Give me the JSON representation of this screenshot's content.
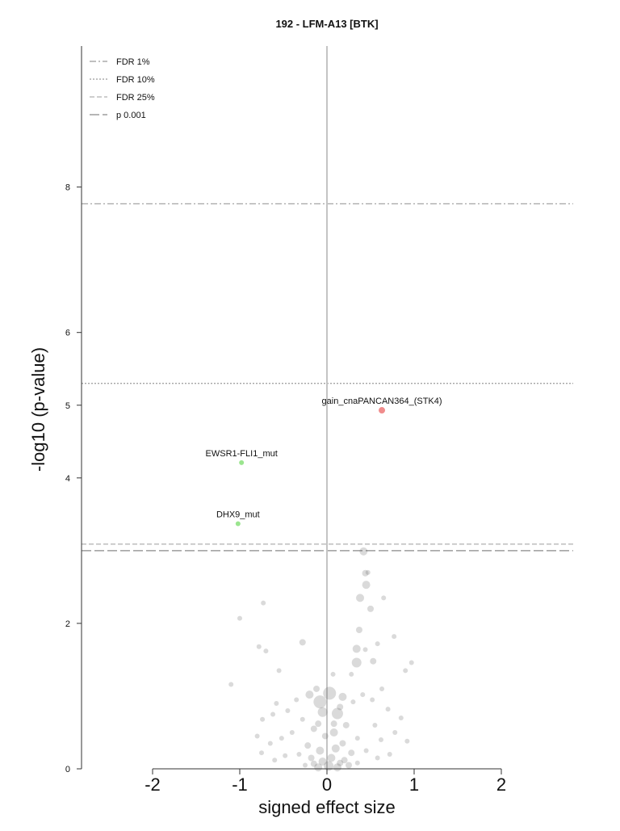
{
  "chart_data": {
    "type": "scatter",
    "title": "192 - LFM-A13 [BTK]",
    "xlabel": "signed effect size",
    "ylabel": "-log10 (p-value)",
    "xlim": [
      -2.75,
      2.8
    ],
    "ylim": [
      0,
      10
    ],
    "x_ticks": [
      -2,
      -1,
      0,
      1,
      2
    ],
    "x_tick_labels": [
      "-2",
      "-1",
      "0",
      "1",
      "2"
    ],
    "y_ticks": [
      0,
      2,
      4,
      5,
      6,
      8
    ],
    "y_tick_labels": [
      "0",
      "2",
      "4",
      "5",
      "6",
      "8"
    ],
    "grid": false,
    "legend_position": "top-left",
    "thresholds": [
      {
        "name": "FDR 1%",
        "y": 7.77,
        "style": "dashdot",
        "color": "#9a9a9a"
      },
      {
        "name": "FDR 10%",
        "y": 5.3,
        "style": "dotted",
        "color": "#9a9a9a"
      },
      {
        "name": "FDR 25%",
        "y": 3.09,
        "style": "dashed",
        "color": "#b0b0b0"
      },
      {
        "name": "p 0.001",
        "y": 3.0,
        "style": "longdash",
        "color": "#8a8a8a"
      }
    ],
    "highlighted_points": [
      {
        "label": "gain_cnaPANCAN364_(STK4)",
        "x": 0.63,
        "y": 4.93,
        "color": "#f08c8c",
        "r": 4
      },
      {
        "label": "EWSR1-FLI1_mut",
        "x": -0.98,
        "y": 4.21,
        "color": "#9be58f",
        "r": 3
      },
      {
        "label": "DHX9_mut",
        "x": -1.02,
        "y": 3.37,
        "color": "#9be58f",
        "r": 3
      }
    ],
    "background_points": [
      {
        "x": 0.42,
        "y": 2.99,
        "r": 5
      },
      {
        "x": 0.44,
        "y": 2.69,
        "r": 4
      },
      {
        "x": 0.47,
        "y": 2.7,
        "r": 3
      },
      {
        "x": 0.45,
        "y": 2.53,
        "r": 5
      },
      {
        "x": 0.38,
        "y": 2.35,
        "r": 5
      },
      {
        "x": 0.65,
        "y": 2.35,
        "r": 3
      },
      {
        "x": 0.5,
        "y": 2.2,
        "r": 4
      },
      {
        "x": -0.73,
        "y": 2.28,
        "r": 3
      },
      {
        "x": -1.0,
        "y": 2.07,
        "r": 3
      },
      {
        "x": 0.37,
        "y": 1.91,
        "r": 4
      },
      {
        "x": 0.77,
        "y": 1.82,
        "r": 3
      },
      {
        "x": -0.28,
        "y": 1.74,
        "r": 4
      },
      {
        "x": -0.78,
        "y": 1.68,
        "r": 3
      },
      {
        "x": -0.7,
        "y": 1.62,
        "r": 3
      },
      {
        "x": 0.34,
        "y": 1.65,
        "r": 5
      },
      {
        "x": 0.44,
        "y": 1.64,
        "r": 3
      },
      {
        "x": 0.58,
        "y": 1.72,
        "r": 3
      },
      {
        "x": 0.34,
        "y": 1.46,
        "r": 6
      },
      {
        "x": 0.53,
        "y": 1.48,
        "r": 4
      },
      {
        "x": 0.97,
        "y": 1.46,
        "r": 3
      },
      {
        "x": 0.9,
        "y": 1.35,
        "r": 3
      },
      {
        "x": -0.55,
        "y": 1.35,
        "r": 3
      },
      {
        "x": 0.28,
        "y": 1.3,
        "r": 3
      },
      {
        "x": 0.07,
        "y": 1.3,
        "r": 3
      },
      {
        "x": -1.1,
        "y": 1.16,
        "r": 3
      },
      {
        "x": 0.03,
        "y": 1.04,
        "r": 8
      },
      {
        "x": -0.08,
        "y": 0.92,
        "r": 8
      },
      {
        "x": -0.2,
        "y": 1.02,
        "r": 5
      },
      {
        "x": 0.18,
        "y": 0.99,
        "r": 5
      },
      {
        "x": 0.12,
        "y": 0.76,
        "r": 7
      },
      {
        "x": -0.05,
        "y": 0.78,
        "r": 6
      },
      {
        "x": 0.3,
        "y": 0.92,
        "r": 3
      },
      {
        "x": 0.41,
        "y": 1.02,
        "r": 3
      },
      {
        "x": 0.52,
        "y": 0.95,
        "r": 3
      },
      {
        "x": 0.63,
        "y": 1.1,
        "r": 3
      },
      {
        "x": -0.35,
        "y": 0.95,
        "r": 3
      },
      {
        "x": -0.58,
        "y": 0.9,
        "r": 3
      },
      {
        "x": -0.62,
        "y": 0.75,
        "r": 3
      },
      {
        "x": -0.74,
        "y": 0.68,
        "r": 3
      },
      {
        "x": -0.45,
        "y": 0.8,
        "r": 3
      },
      {
        "x": -0.28,
        "y": 0.68,
        "r": 3
      },
      {
        "x": 0.22,
        "y": 0.6,
        "r": 4
      },
      {
        "x": 0.7,
        "y": 0.82,
        "r": 3
      },
      {
        "x": 0.85,
        "y": 0.7,
        "r": 3
      },
      {
        "x": 0.55,
        "y": 0.6,
        "r": 3
      },
      {
        "x": -0.15,
        "y": 0.55,
        "r": 4
      },
      {
        "x": 0.08,
        "y": 0.5,
        "r": 5
      },
      {
        "x": -0.02,
        "y": 0.45,
        "r": 4
      },
      {
        "x": 0.35,
        "y": 0.42,
        "r": 3
      },
      {
        "x": -0.4,
        "y": 0.5,
        "r": 3
      },
      {
        "x": -0.52,
        "y": 0.42,
        "r": 3
      },
      {
        "x": -0.65,
        "y": 0.35,
        "r": 3
      },
      {
        "x": -0.8,
        "y": 0.45,
        "r": 3
      },
      {
        "x": 0.62,
        "y": 0.4,
        "r": 3
      },
      {
        "x": 0.78,
        "y": 0.5,
        "r": 3
      },
      {
        "x": 0.92,
        "y": 0.38,
        "r": 3
      },
      {
        "x": 0.18,
        "y": 0.35,
        "r": 4
      },
      {
        "x": -0.22,
        "y": 0.32,
        "r": 4
      },
      {
        "x": 0.1,
        "y": 0.28,
        "r": 5
      },
      {
        "x": -0.08,
        "y": 0.25,
        "r": 5
      },
      {
        "x": 0.28,
        "y": 0.22,
        "r": 4
      },
      {
        "x": -0.32,
        "y": 0.2,
        "r": 3
      },
      {
        "x": 0.45,
        "y": 0.25,
        "r": 3
      },
      {
        "x": -0.48,
        "y": 0.18,
        "r": 3
      },
      {
        "x": -0.6,
        "y": 0.12,
        "r": 3
      },
      {
        "x": 0.58,
        "y": 0.15,
        "r": 3
      },
      {
        "x": 0.72,
        "y": 0.2,
        "r": 3
      },
      {
        "x": -0.75,
        "y": 0.22,
        "r": 3
      },
      {
        "x": 0.05,
        "y": 0.15,
        "r": 5
      },
      {
        "x": -0.05,
        "y": 0.1,
        "r": 5
      },
      {
        "x": 0.15,
        "y": 0.08,
        "r": 4
      },
      {
        "x": -0.15,
        "y": 0.07,
        "r": 4
      },
      {
        "x": 0.25,
        "y": 0.05,
        "r": 4
      },
      {
        "x": -0.25,
        "y": 0.05,
        "r": 3
      },
      {
        "x": 0.35,
        "y": 0.08,
        "r": 3
      },
      {
        "x": 0.02,
        "y": 0.04,
        "r": 6
      },
      {
        "x": 0.12,
        "y": 0.02,
        "r": 5
      },
      {
        "x": -0.1,
        "y": 0.02,
        "r": 5
      },
      {
        "x": 0.2,
        "y": 0.12,
        "r": 4
      },
      {
        "x": -0.18,
        "y": 0.15,
        "r": 4
      },
      {
        "x": 0.08,
        "y": 0.62,
        "r": 4
      },
      {
        "x": -0.1,
        "y": 0.62,
        "r": 4
      },
      {
        "x": 0.15,
        "y": 0.85,
        "r": 4
      },
      {
        "x": -0.12,
        "y": 1.1,
        "r": 4
      }
    ]
  }
}
